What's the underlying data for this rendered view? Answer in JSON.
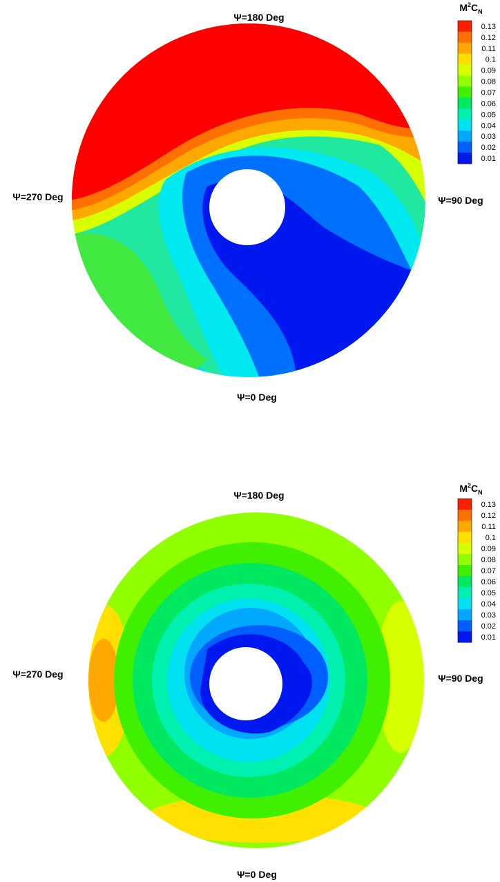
{
  "panels": [
    {
      "labels": {
        "top": "Ψ=180 Deg",
        "right": "Ψ=90 Deg",
        "left": "Ψ=270 Deg",
        "bottom": "Ψ=0 Deg"
      },
      "legend": {
        "title": [
          "M",
          "2",
          "C",
          "N"
        ],
        "levels": [
          "0.13",
          "0.12",
          "0.11",
          "0.1",
          "0.09",
          "0.08",
          "0.07",
          "0.06",
          "0.05",
          "0.04",
          "0.03",
          "0.02",
          "0.01"
        ],
        "colors": [
          "#ff2000",
          "#ff7000",
          "#ffa800",
          "#ffe000",
          "#d8ff00",
          "#90ff00",
          "#40f000",
          "#00e860",
          "#00f0b0",
          "#00e0f0",
          "#00a8ff",
          "#0060ff",
          "#0018f0"
        ]
      }
    },
    {
      "labels": {
        "top": "Ψ=180 Deg",
        "right": "Ψ=90 Deg",
        "left": "Ψ=270 Deg",
        "bottom": "Ψ=0 Deg"
      },
      "legend": {
        "title": [
          "M",
          "2",
          "C",
          "N"
        ],
        "levels": [
          "0.13",
          "0.12",
          "0.11",
          "0.1",
          "0.09",
          "0.08",
          "0.07",
          "0.06",
          "0.05",
          "0.04",
          "0.03",
          "0.02",
          "0.01"
        ],
        "colors": [
          "#ff2000",
          "#ff7000",
          "#ffa800",
          "#ffe000",
          "#d8ff00",
          "#90ff00",
          "#40f000",
          "#00e860",
          "#00f0b0",
          "#00e0f0",
          "#00a8ff",
          "#0060ff",
          "#0018f0"
        ]
      }
    }
  ]
}
